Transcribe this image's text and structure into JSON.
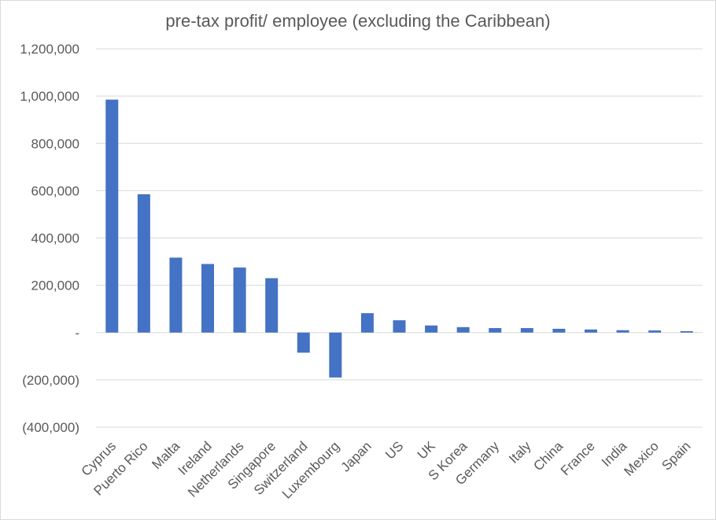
{
  "chart_data": {
    "type": "bar",
    "title": "pre-tax profit/ employee (excluding the Caribbean)",
    "xlabel": "",
    "ylabel": "",
    "ylim": [
      -400000,
      1200000
    ],
    "yticks": [
      1200000,
      1000000,
      800000,
      600000,
      400000,
      200000,
      0,
      -200000,
      -400000
    ],
    "ytick_labels": [
      "1,200,000",
      "1,000,000",
      "800,000",
      "600,000",
      "400,000",
      "200,000",
      "-",
      "(200,000)",
      "(400,000)"
    ],
    "categories": [
      "Cyprus",
      "Puerto Rico",
      "Malta",
      "Ireland",
      "Netherlands",
      "Singapore",
      "Switzerland",
      "Luxembourg",
      "Japan",
      "US",
      "UK",
      "S Korea",
      "Germany",
      "Italy",
      "China",
      "France",
      "India",
      "Mexico",
      "Spain"
    ],
    "values": [
      985000,
      585000,
      317000,
      290000,
      275000,
      230000,
      -85000,
      -190000,
      82000,
      52000,
      30000,
      23000,
      19000,
      19000,
      16000,
      13000,
      10000,
      9000,
      6000
    ],
    "color": "#4472c4",
    "grid": true,
    "legend": "none"
  }
}
